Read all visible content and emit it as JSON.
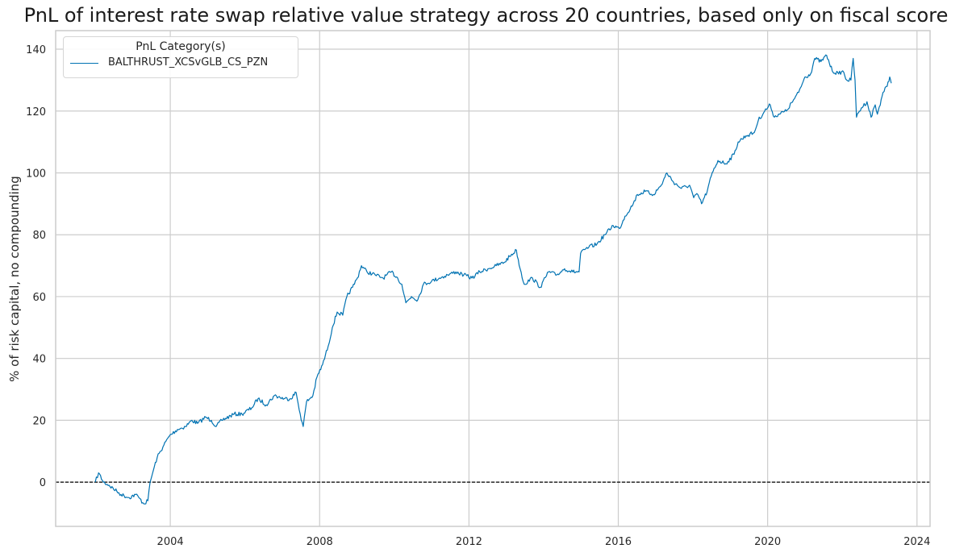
{
  "chart_data": {
    "type": "line",
    "title": "PnL of interest rate swap relative value strategy across 20 countries, based only on fiscal score",
    "xlabel": "",
    "ylabel": "% of risk capital, no compounding",
    "xlim": [
      2000.93,
      2024.35
    ],
    "ylim": [
      -14.3,
      146
    ],
    "xticks": [
      2004,
      2008,
      2012,
      2016,
      2020,
      2024
    ],
    "yticks": [
      0,
      20,
      40,
      60,
      80,
      100,
      120,
      140
    ],
    "grid": true,
    "reference_line": {
      "y": 0,
      "style": "dashed",
      "color": "#000000"
    },
    "legend": {
      "title": "PnL Category(s)",
      "placement": "top-left"
    },
    "series": [
      {
        "name": "BALTHRUST_XCSvGLB_CS_PZN",
        "color": "#0072b2",
        "x": [
          2001.99,
          2002.08,
          2002.21,
          2002.36,
          2002.57,
          2002.68,
          2002.9,
          2003.07,
          2003.16,
          2003.29,
          2003.4,
          2003.46,
          2003.55,
          2003.65,
          2003.83,
          2003.98,
          2004.19,
          2004.41,
          2004.58,
          2004.73,
          2004.95,
          2005.1,
          2005.23,
          2005.38,
          2005.71,
          2005.92,
          2006.18,
          2006.35,
          2006.57,
          2006.79,
          2007.05,
          2007.22,
          2007.37,
          2007.48,
          2007.56,
          2007.65,
          2007.82,
          2007.93,
          2008.08,
          2008.23,
          2008.34,
          2008.47,
          2008.62,
          2008.73,
          2008.88,
          2009.01,
          2009.12,
          2009.27,
          2009.49,
          2009.7,
          2009.92,
          2010.09,
          2010.2,
          2010.31,
          2010.46,
          2010.63,
          2010.78,
          2011.0,
          2011.21,
          2011.43,
          2011.65,
          2011.86,
          2012.08,
          2012.29,
          2012.51,
          2012.73,
          2012.94,
          2013.09,
          2013.27,
          2013.37,
          2013.48,
          2013.7,
          2013.91,
          2014.13,
          2014.35,
          2014.56,
          2014.78,
          2014.95,
          2014.99,
          2015.21,
          2015.43,
          2015.64,
          2015.86,
          2016.03,
          2016.18,
          2016.4,
          2016.51,
          2016.72,
          2016.94,
          2017.15,
          2017.3,
          2017.48,
          2017.69,
          2017.91,
          2018.02,
          2018.13,
          2018.23,
          2018.38,
          2018.49,
          2018.67,
          2018.88,
          2019.1,
          2019.21,
          2019.42,
          2019.64,
          2019.75,
          2019.92,
          2020.07,
          2020.18,
          2020.29,
          2020.5,
          2020.72,
          2020.83,
          2021.0,
          2021.15,
          2021.26,
          2021.43,
          2021.58,
          2021.73,
          2021.9,
          2022.01,
          2022.12,
          2022.23,
          2022.29,
          2022.34,
          2022.38,
          2022.51,
          2022.66,
          2022.77,
          2022.88,
          2022.94,
          2023.09,
          2023.2,
          2023.27,
          2023.31
        ],
        "y": [
          0,
          3,
          0,
          -1,
          -3,
          -4,
          -5,
          -4,
          -5,
          -7,
          -6,
          0,
          4,
          8,
          12,
          15,
          17,
          18,
          20,
          19,
          21,
          20,
          18,
          20,
          22,
          22,
          24,
          27,
          25,
          28,
          27,
          27,
          29,
          22,
          18,
          26,
          28,
          34,
          38,
          44,
          50,
          55,
          54,
          60,
          63,
          66,
          70,
          68,
          67,
          66,
          68,
          66,
          64,
          58,
          60,
          59,
          64,
          65,
          66,
          67,
          68,
          67,
          66,
          68,
          69,
          70,
          71,
          73,
          75,
          69,
          64,
          66,
          63,
          68,
          67,
          69,
          68,
          68,
          74,
          76,
          77,
          80,
          83,
          82,
          86,
          90,
          93,
          94,
          93,
          96,
          100,
          97,
          95,
          96,
          92,
          93,
          90,
          94,
          99,
          104,
          103,
          106,
          110,
          112,
          113,
          117,
          120,
          122,
          118,
          119,
          120,
          124,
          126,
          131,
          132,
          137,
          136,
          138,
          133,
          132,
          133,
          130,
          130,
          137,
          130,
          118,
          121,
          123,
          118,
          122,
          119,
          126,
          128,
          131,
          129
        ]
      }
    ]
  }
}
